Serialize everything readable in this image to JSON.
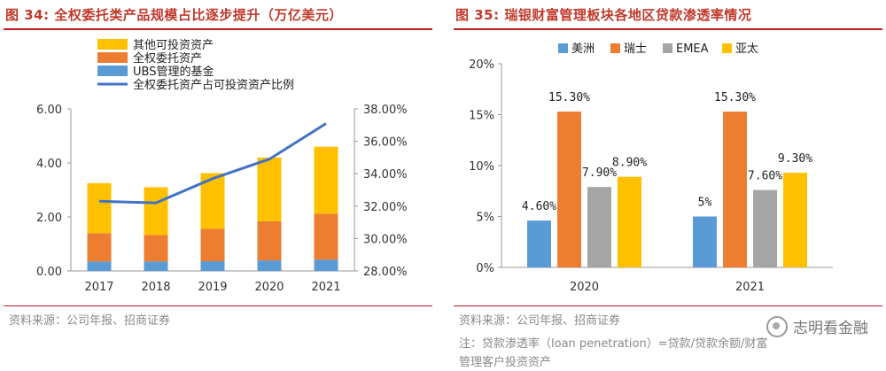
{
  "left": {
    "title": "图 34: 全权委托类产品规模占比逐步提升（万亿美元）",
    "source": "资料来源：公司年报、招商证券"
  },
  "right": {
    "title": "图 35: 瑞银财富管理板块各地区贷款渗透率情况",
    "source": "资料来源：公司年报、招商证券",
    "note_line1": "注：贷款渗透率（loan penetration）=贷款/贷款余额/财富",
    "note_line2": "管理客户投资资产"
  },
  "watermark": {
    "text": "志明看金融",
    "icon": "wechat-icon"
  },
  "chart_data": [
    {
      "type": "bar",
      "stacked": true,
      "title": "图 34: 全权委托类产品规模占比逐步提升（万亿美元）",
      "categories": [
        "2017",
        "2018",
        "2019",
        "2020",
        "2021"
      ],
      "series": [
        {
          "name": "UBS管理的基金",
          "color": "#5b9bd5",
          "values": [
            0.35,
            0.35,
            0.36,
            0.39,
            0.42
          ]
        },
        {
          "name": "全权委托资产",
          "color": "#ed7d31",
          "values": [
            1.05,
            0.98,
            1.2,
            1.45,
            1.7
          ]
        },
        {
          "name": "其他可投资资产",
          "color": "#ffc000",
          "values": [
            1.85,
            1.77,
            2.06,
            2.36,
            2.48
          ]
        },
        {
          "name": "全权委托资产占可投资资产比例",
          "color": "#4472c4",
          "type": "line",
          "axis": "right",
          "values": [
            32.3,
            32.2,
            33.7,
            34.9,
            37.1
          ]
        }
      ],
      "y_left": {
        "min": 0,
        "max": 6,
        "ticks": [
          "0.00",
          "2.00",
          "4.00",
          "6.00"
        ],
        "tick_values": [
          0,
          2,
          4,
          6
        ]
      },
      "y_right": {
        "min": 28,
        "max": 38,
        "ticks": [
          "28.00%",
          "30.00%",
          "32.00%",
          "34.00%",
          "36.00%",
          "38.00%"
        ],
        "tick_values": [
          28,
          30,
          32,
          34,
          36,
          38
        ]
      },
      "legend_order": [
        "其他可投资资产",
        "全权委托资产",
        "UBS管理的基金",
        "全权委托资产占可投资资产比例"
      ],
      "legend_placement": "top-left",
      "grid": false
    },
    {
      "type": "bar",
      "title": "图 35: 瑞银财富管理板块各地区贷款渗透率情况",
      "categories": [
        "2020",
        "2021"
      ],
      "series": [
        {
          "name": "美洲",
          "color": "#5b9bd5",
          "values": [
            4.6,
            5
          ],
          "labels": [
            "4.60%",
            "5%"
          ]
        },
        {
          "name": "瑞士",
          "color": "#ed7d31",
          "values": [
            15.3,
            15.3
          ],
          "labels": [
            "15.30%",
            "15.30%"
          ]
        },
        {
          "name": "EMEA",
          "color": "#a5a5a5",
          "values": [
            7.9,
            7.6
          ],
          "labels": [
            "7.90%",
            "7.60%"
          ]
        },
        {
          "name": "亚太",
          "color": "#ffc000",
          "values": [
            8.9,
            9.3
          ],
          "labels": [
            "8.90%",
            "9.30%"
          ]
        }
      ],
      "y": {
        "min": 0,
        "max": 20,
        "ticks": [
          "0%",
          "5%",
          "10%",
          "15%",
          "20%"
        ],
        "tick_values": [
          0,
          5,
          10,
          15,
          20
        ]
      },
      "legend_placement": "top",
      "grid": false
    }
  ]
}
